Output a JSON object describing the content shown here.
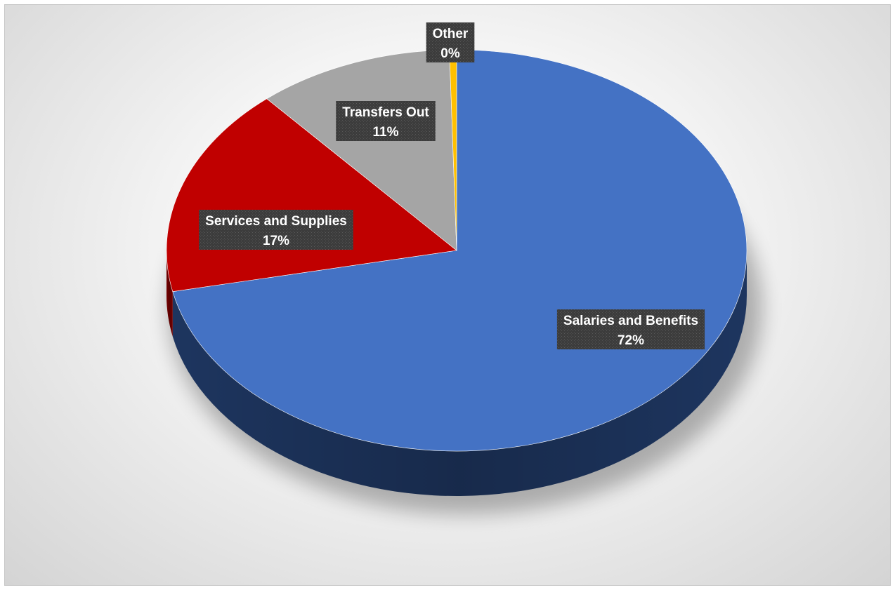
{
  "chart_data": {
    "type": "pie",
    "title": "",
    "style": "3d-pie",
    "legend": "none",
    "slices": [
      {
        "label": "Salaries and Benefits",
        "value": 72,
        "display": "72%",
        "color": "#4472C4",
        "side_color": "#1F3864"
      },
      {
        "label": "Services and Supplies",
        "value": 17,
        "display": "17%",
        "color": "#C00000",
        "side_color": "#7A0000"
      },
      {
        "label": "Transfers Out",
        "value": 11,
        "display": "11%",
        "color": "#A5A5A5",
        "side_color": "#6E6E6E"
      },
      {
        "label": "Other",
        "value": 0.4,
        "display": "0%",
        "color": "#FFC000",
        "side_color": "#B38600"
      }
    ],
    "label_style": {
      "background": "#404040",
      "text_color": "#FFFFFF"
    }
  }
}
